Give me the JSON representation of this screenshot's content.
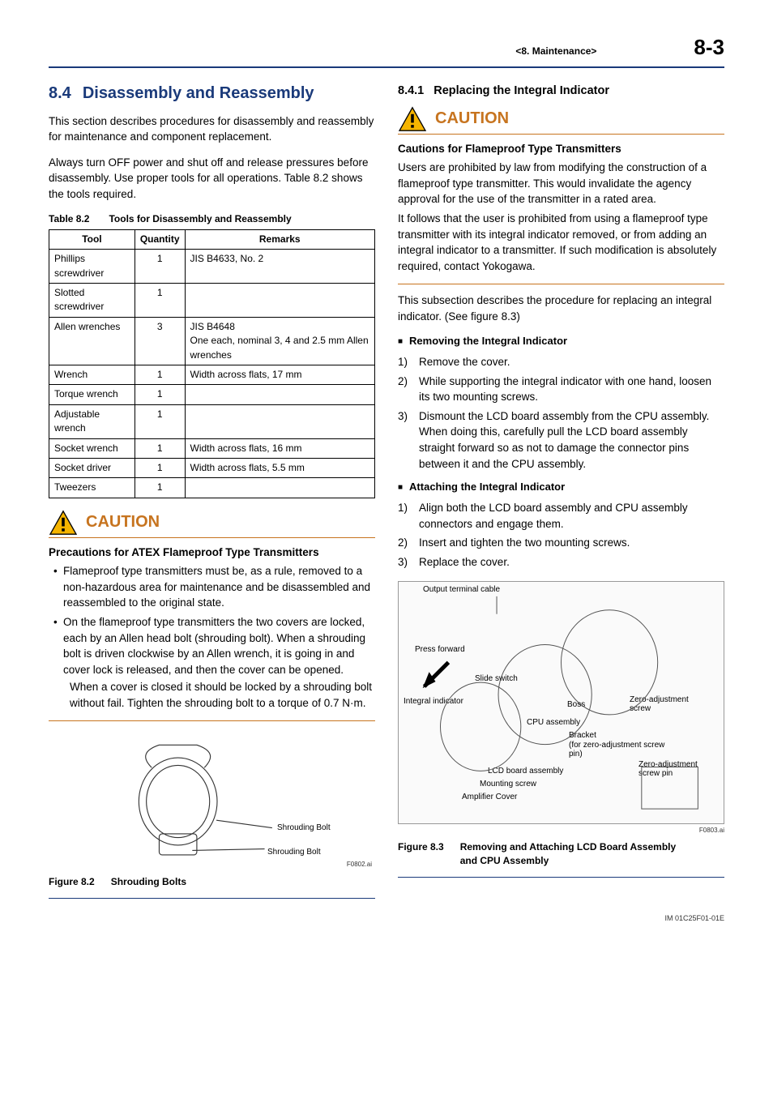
{
  "header": {
    "chapter": "<8.  Maintenance>",
    "page": "8-3"
  },
  "left": {
    "section_num": "8.4",
    "section_title": "Disassembly and Reassembly",
    "intro1": "This section describes procedures for disassembly and reassembly for maintenance and component replacement.",
    "intro2": "Always turn OFF power and shut off and release pressures before disassembly. Use proper tools for all operations. Table 8.2 shows the tools required.",
    "table_caption_num": "Table 8.2",
    "table_caption_text": "Tools for Disassembly and Reassembly",
    "table": {
      "columns": [
        "Tool",
        "Quantity",
        "Remarks"
      ],
      "rows": [
        [
          "Phillips screwdriver",
          "1",
          "JIS B4633, No. 2"
        ],
        [
          "Slotted screwdriver",
          "1",
          ""
        ],
        [
          "Allen wrenches",
          "3",
          "JIS B4648\nOne each, nominal 3, 4 and 2.5 mm Allen wrenches"
        ],
        [
          "Wrench",
          "1",
          "Width across flats, 17 mm"
        ],
        [
          "Torque wrench",
          "1",
          ""
        ],
        [
          "Adjustable wrench",
          "1",
          ""
        ],
        [
          "Socket wrench",
          "1",
          "Width across flats, 16 mm"
        ],
        [
          "Socket driver",
          "1",
          "Width across flats, 5.5 mm"
        ],
        [
          "Tweezers",
          "1",
          ""
        ]
      ]
    },
    "caution": {
      "word": "CAUTION",
      "heading": "Precautions for ATEX Flameproof Type Transmitters",
      "bullets": [
        "Flameproof type transmitters must be, as a rule, removed to a non-hazardous area for maintenance and be disassembled and reassembled to the original state.",
        "On the flameproof type transmitters the two covers are locked, each by an Allen head bolt (shrouding bolt). When a shrouding bolt is driven clockwise by an Allen wrench, it is going in and cover lock is released, and then the cover can be opened."
      ],
      "extra": "When a cover is closed it should be locked by a shrouding bolt without fail. Tighten the shrouding bolt to a torque of 0.7 N·m."
    },
    "fig82": {
      "labels": [
        "Shrouding Bolt",
        "Shrouding Bolt"
      ],
      "id": "F0802.ai",
      "caption_num": "Figure 8.2",
      "caption_text": "Shrouding Bolts"
    }
  },
  "right": {
    "sub_num": "8.4.1",
    "sub_title": "Replacing the Integral Indicator",
    "caution": {
      "word": "CAUTION",
      "heading": "Cautions for Flameproof Type Transmitters",
      "body1": "Users are prohibited by law from modifying the construction of a flameproof type transmitter. This would invalidate the agency approval for the use of the transmitter in a rated area.",
      "body2": "It follows that the user is prohibited from using a flameproof type transmitter with its integral indicator removed, or from adding an integral indicator to a transmitter. If such modification is absolutely required, contact Yokogawa."
    },
    "para": "This subsection describes the procedure for replacing an integral indicator. (See figure 8.3)",
    "remove_head": "Removing the Integral Indicator",
    "remove_steps": [
      "Remove the cover.",
      "While supporting the integral indicator with one hand, loosen its two mounting screws.",
      "Dismount the LCD board assembly from the CPU assembly.\nWhen doing this, carefully pull the LCD board assembly straight forward so as not to damage the connector pins between it and the CPU assembly."
    ],
    "attach_head": "Attaching the Integral Indicator",
    "attach_steps": [
      "Align both the LCD board assembly and CPU assembly connectors and engage them.",
      "Insert and tighten the two mounting screws.",
      "Replace the cover."
    ],
    "fig83": {
      "labels": {
        "l1": "Output terminal cable",
        "l2": "Press forward",
        "l3": "Slide switch",
        "l4": "Integral indicator",
        "l5": "Boss",
        "l6": "CPU assembly",
        "l7": "Zero-adjustment screw",
        "l8": "Bracket",
        "l9": "(for zero-adjustment screw pin)",
        "l10": "Zero-adjustment screw pin",
        "l11": "LCD board assembly",
        "l12": "Mounting screw",
        "l13": "Amplifier Cover"
      },
      "id": "F0803.ai",
      "caption_num": "Figure 8.3",
      "caption_text": "Removing and Attaching LCD Board Assembly and CPU Assembly"
    }
  },
  "footer": "IM 01C25F01-01E"
}
